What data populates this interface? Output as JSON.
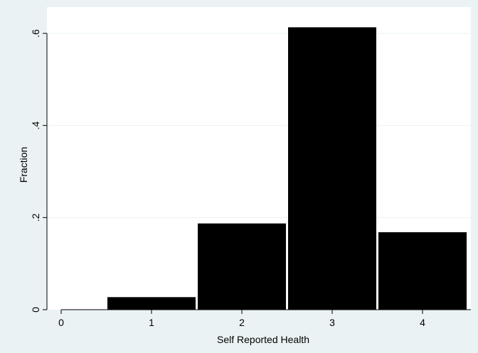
{
  "chart_data": {
    "type": "bar",
    "title": "",
    "xlabel": "Self Reported Health",
    "ylabel": "Fraction",
    "xlim": [
      -0.15,
      4.5
    ],
    "ylim": [
      0,
      0.62
    ],
    "xticks": [
      0,
      1,
      2,
      3,
      4
    ],
    "xtick_labels": [
      "0",
      "1",
      "2",
      "3",
      "4"
    ],
    "yticks": [
      0,
      0.2,
      0.4,
      0.6
    ],
    "ytick_labels": [
      "0",
      ".2",
      ".4",
      ".6"
    ],
    "grid": true,
    "bars": [
      {
        "x": 1,
        "value": 0.028
      },
      {
        "x": 2,
        "value": 0.188
      },
      {
        "x": 3,
        "value": 0.614
      },
      {
        "x": 4,
        "value": 0.169
      }
    ],
    "bin_width": 1,
    "colors": {
      "background": "#eaf2f3",
      "plot_background": "#ffffff",
      "bar_fill": "#000000",
      "bar_edge": "#ffffff",
      "grid": "#eaf2f3"
    }
  }
}
